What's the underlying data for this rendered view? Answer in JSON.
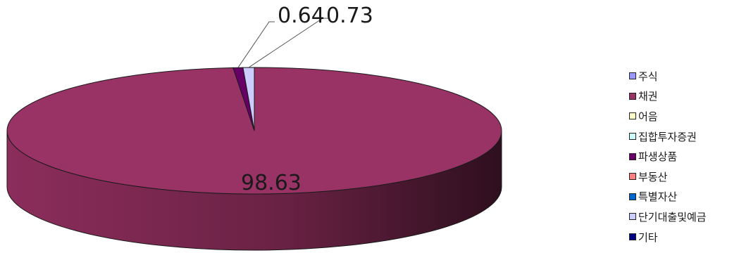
{
  "chart_data": {
    "type": "pie",
    "style": "3d",
    "legend_position": "right",
    "categories": [
      "주식",
      "채권",
      "어음",
      "집합투자증권",
      "파생상품",
      "부동산",
      "특별자산",
      "단기대출및예금",
      "기타"
    ],
    "values": [
      0,
      98.63,
      0,
      0,
      0.64,
      0,
      0,
      0.73,
      0
    ],
    "colors": [
      "#9999ff",
      "#993366",
      "#ffffcc",
      "#ccffff",
      "#660066",
      "#ff8080",
      "#0066cc",
      "#ccccff",
      "#000080"
    ],
    "data_labels": [
      {
        "category": "채권",
        "text": "98.63"
      },
      {
        "category": "파생상품",
        "text": "0.64"
      },
      {
        "category": "단기대출및예금",
        "text": "0.73"
      }
    ]
  }
}
